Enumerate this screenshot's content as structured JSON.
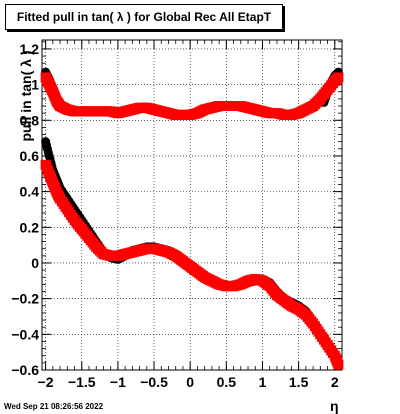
{
  "title": "Fitted pull in tan( λ ) for Global Rec All EtapT",
  "footer": "Wed Sep 21 08:26:56 2022",
  "chart_data": {
    "type": "scatter",
    "xlabel": "η",
    "ylabel": "pull in tan( λ )",
    "xlim": [
      -2.05,
      2.1
    ],
    "ylim": [
      -0.6,
      1.25
    ],
    "grid": true,
    "xticks": [
      -2,
      -1.5,
      -1,
      -0.5,
      0,
      0.5,
      1,
      1.5,
      2
    ],
    "xtick_labels": [
      "−2",
      "−1.5",
      "−1",
      "−0.5",
      "0",
      "0.5",
      "1",
      "1.5",
      "2"
    ],
    "yticks": [
      -0.6,
      -0.4,
      -0.2,
      0,
      0.2,
      0.4,
      0.6,
      0.8,
      1,
      1.2
    ],
    "ytick_labels": [
      "−0.6",
      "−0.4",
      "−0.2",
      "0",
      "0.2",
      "0.4",
      "0.6",
      "0.8",
      "1",
      "1.2"
    ],
    "series": [
      {
        "color": "#000000",
        "marker": "circle",
        "x": [
          -2.0,
          -1.95,
          -1.9,
          -1.85,
          -1.8,
          -1.7,
          -1.6,
          -1.5,
          -1.4,
          -1.3,
          -1.2,
          -1.1,
          -1.0,
          -0.9,
          -0.8,
          -0.7,
          -0.6,
          -0.5,
          -0.4,
          -0.3,
          -0.2,
          -0.1,
          0.0,
          0.1,
          0.2,
          0.3,
          0.4,
          0.5,
          0.6,
          0.7,
          0.8,
          0.9,
          1.0,
          1.1,
          1.2,
          1.3,
          1.4,
          1.5,
          1.6,
          1.7,
          1.8,
          1.9,
          2.0,
          2.05
        ],
        "y": [
          0.68,
          0.6,
          0.52,
          0.47,
          0.42,
          0.36,
          0.3,
          0.24,
          0.18,
          0.12,
          0.06,
          0.03,
          0.02,
          0.04,
          0.07,
          0.08,
          0.09,
          0.09,
          0.08,
          0.07,
          0.04,
          0.01,
          -0.02,
          -0.05,
          -0.08,
          -0.1,
          -0.12,
          -0.13,
          -0.13,
          -0.12,
          -0.11,
          -0.1,
          -0.09,
          -0.11,
          -0.16,
          -0.2,
          -0.22,
          -0.24,
          -0.27,
          -0.33,
          -0.4,
          -0.47,
          -0.53,
          -0.56
        ]
      },
      {
        "color": "#ff0000",
        "marker": "square",
        "x": [
          -2.0,
          -1.95,
          -1.9,
          -1.85,
          -1.8,
          -1.7,
          -1.6,
          -1.5,
          -1.4,
          -1.3,
          -1.2,
          -1.1,
          -1.0,
          -0.9,
          -0.8,
          -0.7,
          -0.6,
          -0.5,
          -0.4,
          -0.3,
          -0.2,
          -0.1,
          0.0,
          0.1,
          0.2,
          0.3,
          0.4,
          0.5,
          0.6,
          0.7,
          0.8,
          0.9,
          1.0,
          1.1,
          1.2,
          1.3,
          1.4,
          1.5,
          1.6,
          1.7,
          1.8,
          1.9,
          2.0,
          2.05
        ],
        "y": [
          0.55,
          0.5,
          0.45,
          0.4,
          0.36,
          0.3,
          0.24,
          0.19,
          0.14,
          0.09,
          0.05,
          0.04,
          0.04,
          0.05,
          0.06,
          0.07,
          0.08,
          0.08,
          0.07,
          0.06,
          0.04,
          0.01,
          -0.02,
          -0.05,
          -0.08,
          -0.1,
          -0.12,
          -0.13,
          -0.13,
          -0.12,
          -0.1,
          -0.09,
          -0.1,
          -0.13,
          -0.18,
          -0.21,
          -0.24,
          -0.26,
          -0.29,
          -0.34,
          -0.4,
          -0.46,
          -0.52,
          -0.57
        ]
      },
      {
        "color": "#000000",
        "marker": "circle",
        "x": [
          -2.0,
          -1.95,
          -1.9,
          -1.85,
          -1.8,
          1.85,
          1.9,
          1.95,
          2.0,
          2.05
        ],
        "y": [
          1.07,
          1.03,
          0.98,
          0.93,
          0.88,
          0.9,
          0.96,
          1.01,
          1.05,
          1.07
        ]
      },
      {
        "color": "#ff0000",
        "marker": "square",
        "x": [
          -2.0,
          -1.95,
          -1.9,
          -1.85,
          -1.8,
          -1.7,
          -1.6,
          -1.5,
          -1.4,
          -1.3,
          -1.2,
          -1.1,
          -1.0,
          -0.9,
          -0.8,
          -0.7,
          -0.6,
          -0.5,
          -0.4,
          -0.3,
          -0.2,
          -0.1,
          0.0,
          0.1,
          0.2,
          0.3,
          0.4,
          0.5,
          0.6,
          0.7,
          0.8,
          0.9,
          1.0,
          1.1,
          1.2,
          1.3,
          1.4,
          1.5,
          1.6,
          1.7,
          1.8,
          1.9,
          2.0,
          2.05
        ],
        "y": [
          1.04,
          1.0,
          0.96,
          0.91,
          0.88,
          0.86,
          0.85,
          0.85,
          0.85,
          0.85,
          0.85,
          0.85,
          0.84,
          0.85,
          0.86,
          0.87,
          0.87,
          0.86,
          0.85,
          0.84,
          0.83,
          0.83,
          0.83,
          0.84,
          0.86,
          0.87,
          0.88,
          0.88,
          0.88,
          0.88,
          0.87,
          0.86,
          0.85,
          0.84,
          0.84,
          0.83,
          0.83,
          0.84,
          0.86,
          0.88,
          0.92,
          0.97,
          1.02,
          1.04
        ]
      }
    ]
  }
}
